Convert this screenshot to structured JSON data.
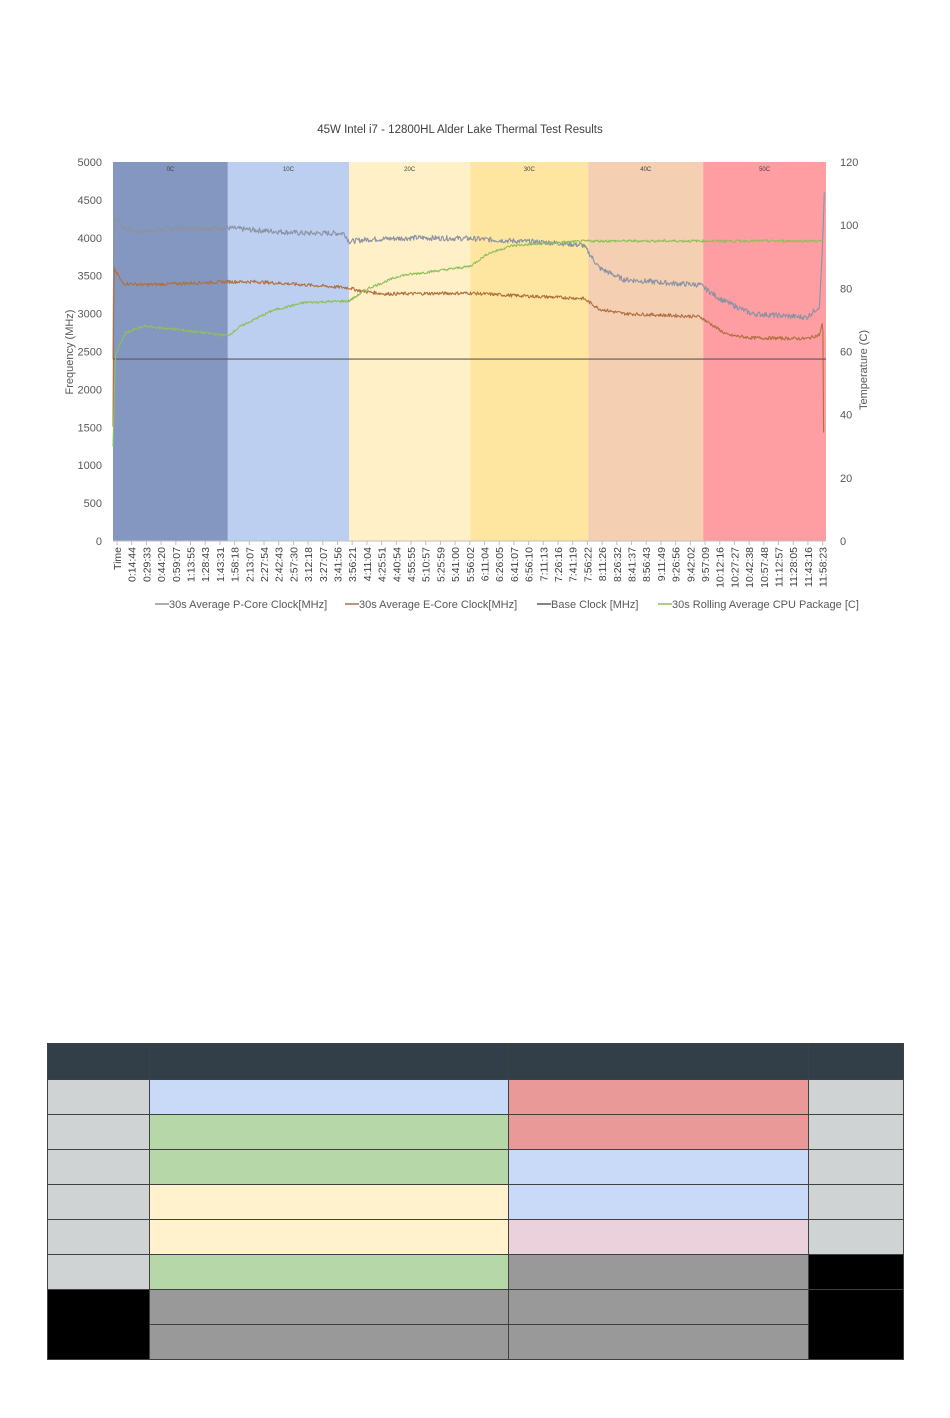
{
  "chart_data": {
    "type": "line",
    "title": "45W Intel i7 - 12800HL Alder Lake Thermal Test Results",
    "ylabel_left": "Frequency (MHz)",
    "ylabel_right": "Temperature (C)",
    "ylim_left": [
      0,
      5000
    ],
    "ylim_right": [
      0,
      120
    ],
    "yticks_left": [
      0,
      500,
      1000,
      1500,
      2000,
      2500,
      3000,
      3500,
      4000,
      4500,
      5000
    ],
    "yticks_right": [
      0,
      20,
      40,
      60,
      80,
      100,
      120
    ],
    "x_range_seconds": [
      0,
      44700
    ],
    "xtick_labels": [
      "Time",
      "0:14:44",
      "0:29:33",
      "0:44:20",
      "0:59:07",
      "1:13:55",
      "1:28:43",
      "1:43:31",
      "1:58:18",
      "2:13:07",
      "2:27:54",
      "2:42:43",
      "2:57:30",
      "3:12:18",
      "3:27:07",
      "3:41:56",
      "3:56:21",
      "4:11:04",
      "4:25:51",
      "4:40:54",
      "4:55:55",
      "5:10:57",
      "5:25:59",
      "5:41:00",
      "5:56:02",
      "6:11:04",
      "6:26:05",
      "6:41:07",
      "6:56:10",
      "7:11:13",
      "7:26:16",
      "7:41:19",
      "7:56:22",
      "8:11:26",
      "8:26:32",
      "8:41:37",
      "8:56:43",
      "9:11:49",
      "9:26:56",
      "9:42:02",
      "9:57:09",
      "10:12:16",
      "10:27:27",
      "10:42:38",
      "10:57:48",
      "11:12:57",
      "11:28:05",
      "11:43:16",
      "11:58:23"
    ],
    "zones": [
      {
        "label": "0C",
        "start": 0,
        "end": 7200,
        "color": "#8497c0"
      },
      {
        "label": "10C",
        "start": 7200,
        "end": 14800,
        "color": "#bccff0"
      },
      {
        "label": "20C",
        "start": 14800,
        "end": 22400,
        "color": "#fff0c8"
      },
      {
        "label": "30C",
        "start": 22400,
        "end": 29800,
        "color": "#ffe6a0"
      },
      {
        "label": "40C",
        "start": 29800,
        "end": 37000,
        "color": "#f5cfb2"
      },
      {
        "label": "50C",
        "start": 37000,
        "end": 44700,
        "color": "#ff9ea2"
      }
    ],
    "series": [
      {
        "name": "30s Average P-Core Clock[MHz]",
        "axis": "left",
        "color": "#8b93a3",
        "noise": 35,
        "points": [
          [
            0,
            2400
          ],
          [
            60,
            4300
          ],
          [
            600,
            4150
          ],
          [
            1500,
            4080
          ],
          [
            3600,
            4120
          ],
          [
            7200,
            4130
          ],
          [
            9000,
            4100
          ],
          [
            12000,
            4060
          ],
          [
            14500,
            4060
          ],
          [
            14800,
            3950
          ],
          [
            16000,
            3980
          ],
          [
            19000,
            4000
          ],
          [
            22400,
            3990
          ],
          [
            25000,
            3960
          ],
          [
            28000,
            3930
          ],
          [
            29500,
            3900
          ],
          [
            30500,
            3600
          ],
          [
            32000,
            3450
          ],
          [
            35000,
            3400
          ],
          [
            36800,
            3380
          ],
          [
            38000,
            3200
          ],
          [
            40000,
            3000
          ],
          [
            43500,
            2950
          ],
          [
            44300,
            3100
          ],
          [
            44500,
            4000
          ],
          [
            44600,
            4600
          ]
        ]
      },
      {
        "name": "30s Average E-Core Clock[MHz]",
        "axis": "left",
        "color": "#b07040",
        "noise": 22,
        "points": [
          [
            0,
            1500
          ],
          [
            60,
            3600
          ],
          [
            600,
            3400
          ],
          [
            2000,
            3380
          ],
          [
            7200,
            3420
          ],
          [
            9000,
            3420
          ],
          [
            12000,
            3380
          ],
          [
            14800,
            3340
          ],
          [
            15500,
            3300
          ],
          [
            17000,
            3260
          ],
          [
            22400,
            3270
          ],
          [
            25000,
            3240
          ],
          [
            29500,
            3200
          ],
          [
            30500,
            3060
          ],
          [
            32000,
            3000
          ],
          [
            36800,
            2960
          ],
          [
            37200,
            2900
          ],
          [
            38500,
            2720
          ],
          [
            40000,
            2680
          ],
          [
            43500,
            2670
          ],
          [
            44300,
            2720
          ],
          [
            44500,
            2900
          ],
          [
            44550,
            1450
          ]
        ]
      },
      {
        "name": "Base Clock [MHz]",
        "axis": "left",
        "color": "#5a5a5a",
        "noise": 0,
        "points": [
          [
            0,
            2400
          ],
          [
            44700,
            2400
          ]
        ]
      },
      {
        "name": "30s Rolling Average CPU Package [C]",
        "axis": "right",
        "color": "#8fbf5a",
        "noise": 0.4,
        "points": [
          [
            0,
            30
          ],
          [
            150,
            59
          ],
          [
            800,
            66
          ],
          [
            2000,
            68
          ],
          [
            4000,
            67
          ],
          [
            7200,
            65
          ],
          [
            8000,
            68
          ],
          [
            10000,
            73
          ],
          [
            12000,
            75.5
          ],
          [
            14800,
            76
          ],
          [
            16000,
            80
          ],
          [
            18000,
            84
          ],
          [
            21000,
            86
          ],
          [
            22400,
            87
          ],
          [
            23500,
            91
          ],
          [
            25000,
            93.5
          ],
          [
            28000,
            94.5
          ],
          [
            29800,
            95
          ],
          [
            33000,
            95
          ],
          [
            37000,
            95
          ],
          [
            40000,
            95
          ],
          [
            44000,
            95
          ],
          [
            44500,
            95
          ]
        ]
      }
    ],
    "legend_position": "bottom",
    "grid": false
  },
  "table": {
    "header_color": "#323e48",
    "column_count": 4,
    "rows": [
      {
        "cells": [
          {
            "color": "#d0d3d4"
          },
          {
            "color": "#c8daf8"
          },
          {
            "color": "#ea9999"
          },
          {
            "color": "#d0d3d4"
          }
        ]
      },
      {
        "cells": [
          {
            "color": "#d0d3d4"
          },
          {
            "color": "#b6d7a8"
          },
          {
            "color": "#ea9999"
          },
          {
            "color": "#d0d3d4"
          }
        ]
      },
      {
        "cells": [
          {
            "color": "#d0d3d4"
          },
          {
            "color": "#b6d7a8"
          },
          {
            "color": "#c8daf8"
          },
          {
            "color": "#d0d3d4"
          }
        ]
      },
      {
        "cells": [
          {
            "color": "#d0d3d4"
          },
          {
            "color": "#fff2cc"
          },
          {
            "color": "#c8daf8"
          },
          {
            "color": "#d0d3d4"
          }
        ]
      },
      {
        "cells": [
          {
            "color": "#d0d3d4"
          },
          {
            "color": "#fff2cc"
          },
          {
            "color": "#ead1dc"
          },
          {
            "color": "#d0d3d4"
          }
        ]
      },
      {
        "cells": [
          {
            "color": "#d0d3d4"
          },
          {
            "color": "#b6d7a8"
          },
          {
            "color": "#999999"
          },
          {
            "color": "#000000"
          }
        ]
      },
      {
        "cells": [
          {
            "color": "#000000",
            "rowspan": 2
          },
          {
            "color": "#999999"
          },
          {
            "color": "#999999"
          },
          {
            "color": "#000000",
            "rowspan": 2
          }
        ]
      },
      {
        "cells": [
          {
            "color": "#999999"
          },
          {
            "color": "#999999"
          }
        ]
      }
    ]
  }
}
